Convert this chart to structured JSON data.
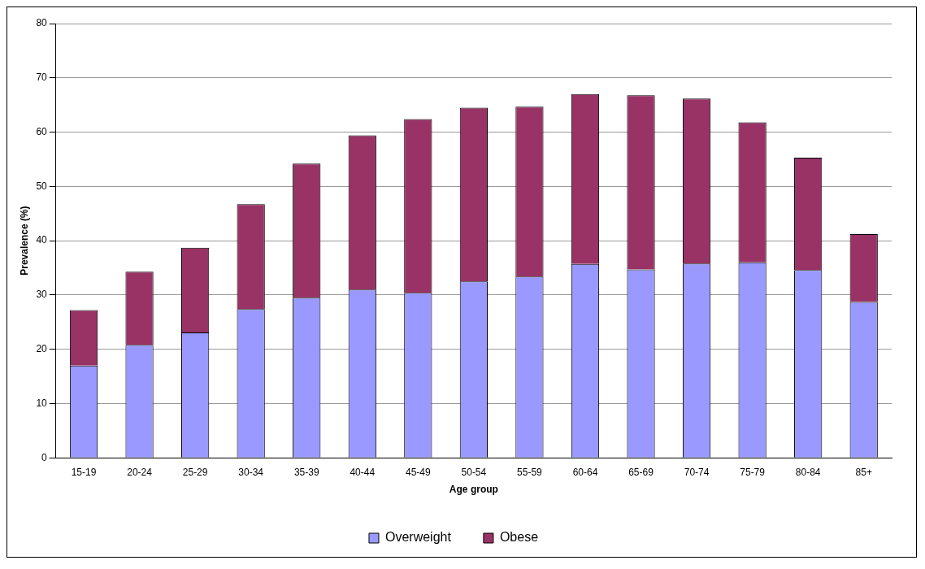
{
  "chart_data": {
    "type": "bar",
    "stacked": true,
    "xlabel": "Age group",
    "ylabel": "Prevalence (%)",
    "categories": [
      "15-19",
      "20-24",
      "25-29",
      "30-34",
      "35-39",
      "40-44",
      "45-49",
      "50-54",
      "55-59",
      "60-64",
      "65-69",
      "70-74",
      "75-79",
      "80-84",
      "85+"
    ],
    "series": [
      {
        "name": "Overweight",
        "color": "#9999ff",
        "values": [
          17.0,
          20.8,
          23.1,
          27.4,
          29.5,
          31.0,
          30.4,
          32.5,
          33.4,
          35.7,
          34.7,
          35.8,
          36.0,
          34.6,
          28.7
        ]
      },
      {
        "name": "Obese",
        "color": "#993366",
        "values": [
          10.2,
          13.5,
          15.6,
          19.3,
          24.7,
          28.4,
          32.0,
          32.0,
          31.3,
          31.3,
          32.1,
          30.4,
          25.8,
          20.7,
          12.5
        ]
      }
    ],
    "ylim": [
      0,
      80
    ],
    "yticks": [
      0,
      10,
      20,
      30,
      40,
      50,
      60,
      70,
      80
    ],
    "grid": "y",
    "legend": "bottom"
  }
}
